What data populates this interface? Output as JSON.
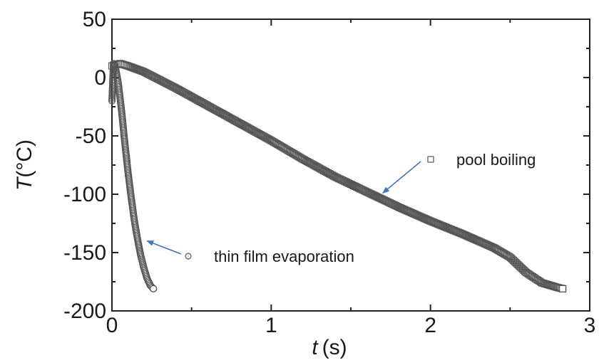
{
  "chart_data": {
    "type": "scatter",
    "xlabel": "t (s)",
    "xlabel_var": "t",
    "xlabel_unit": "(s)",
    "ylabel": "T(°C)",
    "ylabel_var": "T",
    "ylabel_unit": "(°C)",
    "xlim": [
      0,
      3
    ],
    "ylim": [
      -200,
      50
    ],
    "xticks": [
      "0",
      "1",
      "2",
      "3"
    ],
    "yticks": [
      "50",
      "0",
      "-50",
      "-100",
      "-150",
      "-200"
    ],
    "grid": false,
    "marker_color": "#555555",
    "arrow_color": "#4472c4",
    "series": [
      {
        "name": "pool boiling",
        "marker": "square",
        "x": [
          0.0,
          0.05,
          0.1,
          0.2,
          0.4,
          0.6,
          0.8,
          1.0,
          1.2,
          1.4,
          1.6,
          1.8,
          2.0,
          2.2,
          2.4,
          2.5,
          2.6,
          2.7,
          2.8,
          2.83
        ],
        "y": [
          10,
          12,
          10,
          5,
          -9,
          -24,
          -39,
          -54,
          -70,
          -85,
          -98,
          -111,
          -123,
          -134,
          -146,
          -154,
          -167,
          -176,
          -180,
          -181
        ]
      },
      {
        "name": "thin film evaporation",
        "marker": "circle",
        "x": [
          0.0,
          0.01,
          0.02,
          0.04,
          0.06,
          0.08,
          0.1,
          0.12,
          0.14,
          0.16,
          0.18,
          0.2,
          0.22,
          0.24,
          0.26
        ],
        "y": [
          -20,
          12,
          10,
          -5,
          -28,
          -55,
          -80,
          -102,
          -122,
          -138,
          -152,
          -163,
          -172,
          -178,
          -181
        ]
      }
    ],
    "annotations": [
      {
        "label": "pool boiling",
        "arrow_to": [
          1.7,
          -99
        ]
      },
      {
        "label": "thin film evaporation",
        "arrow_to": [
          0.22,
          -140
        ]
      }
    ]
  }
}
